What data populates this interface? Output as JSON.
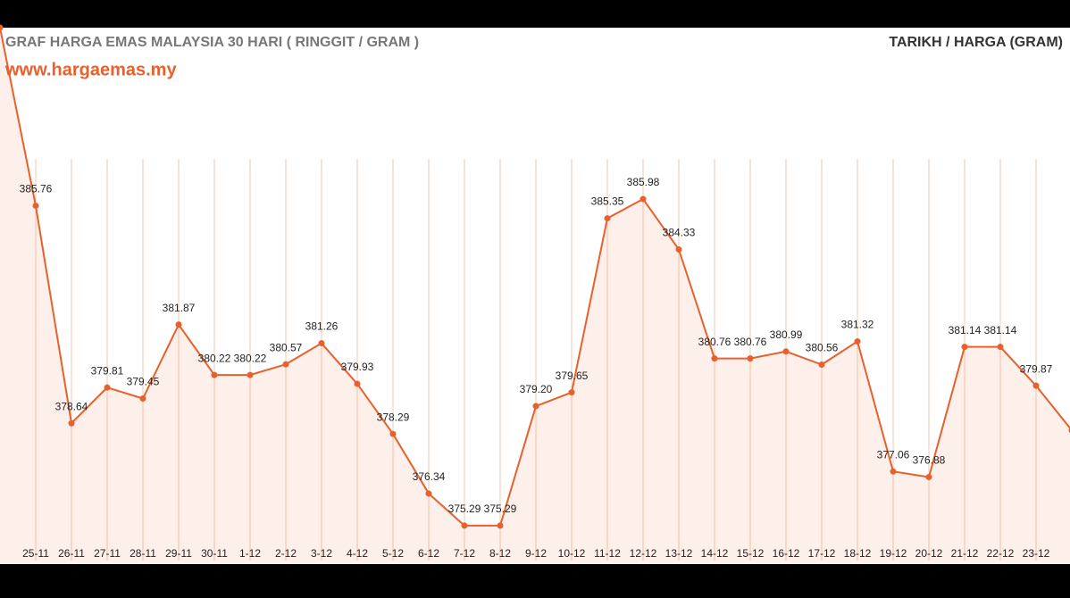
{
  "chart_data": {
    "type": "line",
    "title": "GRAF HARGA EMAS MALAYSIA 30 HARI ( RINGGIT / GRAM )",
    "subtitle": "www.hargaemas.my",
    "annotation": "TARIKH / HARGA (GRAM)",
    "categories": [
      null,
      "25-11",
      "26-11",
      "27-11",
      "28-11",
      "29-11",
      "30-11",
      "1-12",
      "2-12",
      "3-12",
      "4-12",
      "5-12",
      "6-12",
      "7-12",
      "8-12",
      "9-12",
      "10-12",
      "11-12",
      "12-12",
      "13-12",
      "14-12",
      "15-12",
      "16-12",
      "17-12",
      "18-12",
      "19-12",
      "20-12",
      "21-12",
      "22-12",
      "23-12",
      null
    ],
    "values": [
      391.59,
      385.76,
      378.64,
      379.81,
      379.45,
      381.87,
      380.22,
      380.22,
      380.57,
      381.26,
      379.93,
      378.29,
      376.34,
      375.29,
      375.29,
      379.2,
      379.65,
      385.35,
      385.98,
      384.33,
      380.76,
      380.76,
      380.99,
      380.56,
      381.32,
      377.06,
      376.88,
      381.14,
      381.14,
      379.87,
      378.41
    ],
    "value_labels": [
      null,
      "385.76",
      "378.64",
      "379.81",
      "379.45",
      "381.87",
      "380.22",
      "380.22",
      "380.57",
      "381.26",
      "379.93",
      "378.29",
      "376.34",
      "375.29",
      "375.29",
      "379.20",
      "379.65",
      "385.35",
      "385.98",
      "384.33",
      "380.76",
      "380.76",
      "380.99",
      "380.56",
      "381.32",
      "377.06",
      "376.88",
      "381.14",
      "381.14",
      "379.87",
      null
    ],
    "color": "#e8602c",
    "ylim": [
      374.03,
      391.59
    ]
  }
}
